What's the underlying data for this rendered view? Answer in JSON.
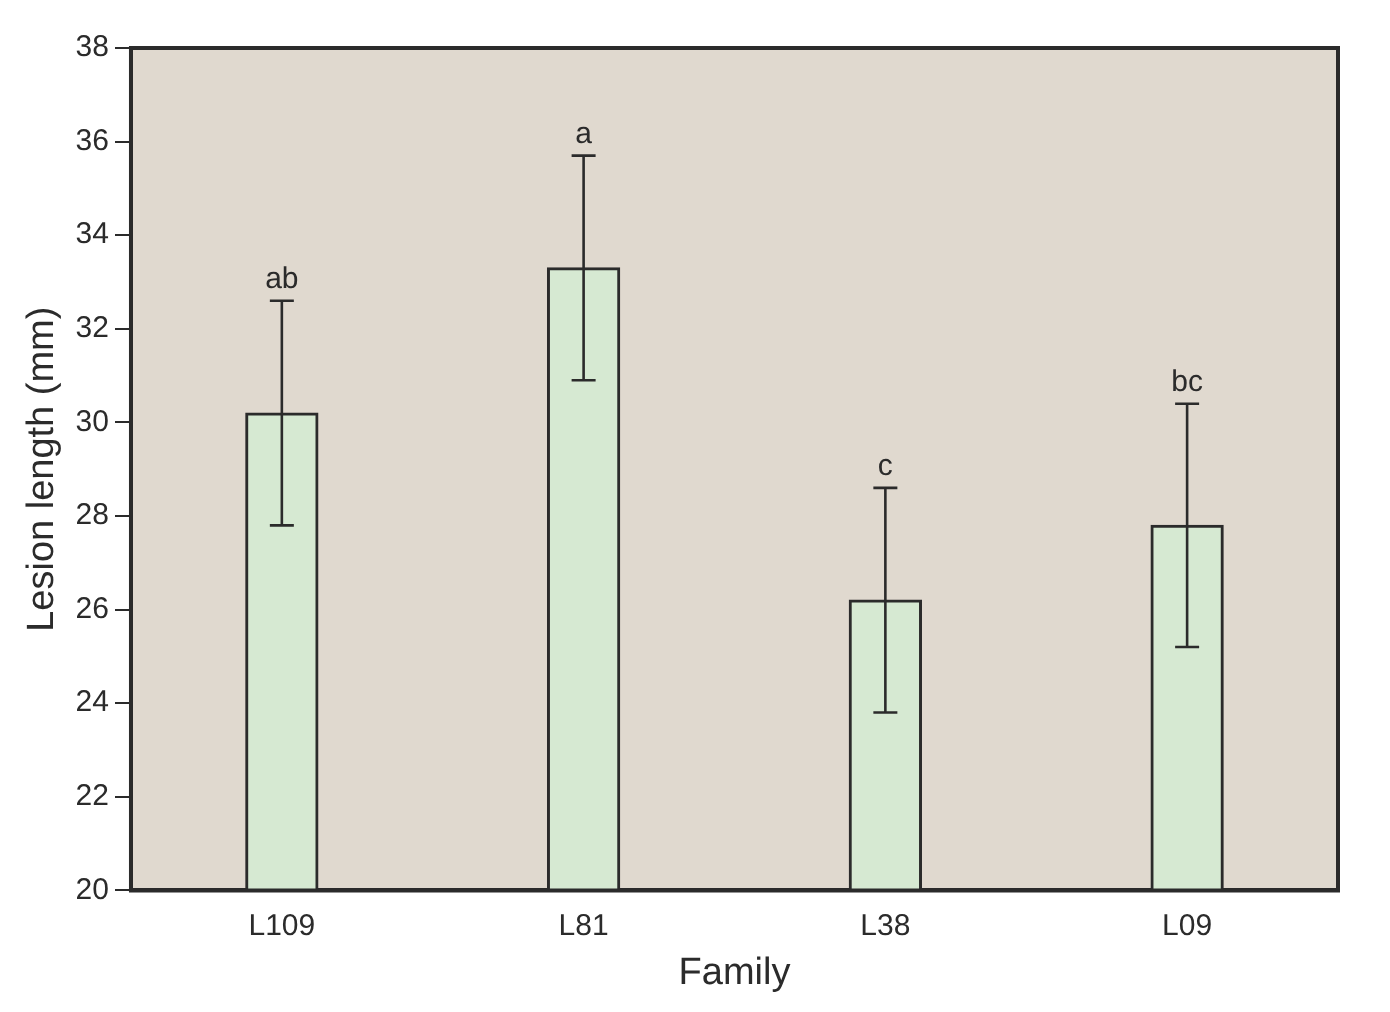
{
  "chart_data": {
    "type": "bar",
    "xlabel": "Family",
    "ylabel": "Lesion length (mm)",
    "categories": [
      "L109",
      "L81",
      "L38",
      "L09"
    ],
    "values": [
      30.2,
      33.3,
      26.2,
      27.8
    ],
    "errors": [
      2.4,
      2.4,
      2.4,
      2.6
    ],
    "color": "#d6e9d2",
    "ylim": [
      20,
      38
    ],
    "yticks": [
      20,
      22,
      24,
      26,
      28,
      30,
      32,
      34,
      36,
      38
    ],
    "grid": false,
    "legend": false,
    "annotations": [
      "ab",
      "a",
      "c",
      "bc"
    ]
  }
}
